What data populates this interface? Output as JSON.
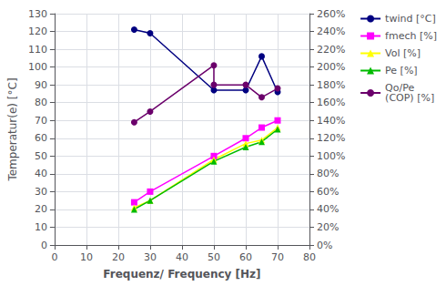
{
  "chart_data": {
    "type": "line",
    "xlabel": "Frequenz/ Frequency [Hz]",
    "ylabel": "Temperatur(e) [°C]",
    "xlim": [
      0,
      80
    ],
    "xticks": [
      0,
      10,
      20,
      30,
      40,
      50,
      60,
      70,
      80
    ],
    "ylim": [
      0,
      130
    ],
    "yticks": [
      0,
      10,
      20,
      30,
      40,
      50,
      60,
      70,
      80,
      90,
      100,
      110,
      120,
      130
    ],
    "y2lim": [
      0,
      2.6
    ],
    "y2ticks": [
      {
        "value": 0.0,
        "label": "0%"
      },
      {
        "value": 0.2,
        "label": "20%"
      },
      {
        "value": 0.4,
        "label": "40%"
      },
      {
        "value": 0.6,
        "label": "60%"
      },
      {
        "value": 0.8,
        "label": "80%"
      },
      {
        "value": 1.0,
        "label": "100%"
      },
      {
        "value": 1.2,
        "label": "120%"
      },
      {
        "value": 1.4,
        "label": "140%"
      },
      {
        "value": 1.6,
        "label": "160%"
      },
      {
        "value": 1.8,
        "label": "180%"
      },
      {
        "value": 2.0,
        "label": "200%"
      },
      {
        "value": 2.2,
        "label": "220%"
      },
      {
        "value": 2.4,
        "label": "240%"
      },
      {
        "value": 2.6,
        "label": "260%"
      }
    ],
    "grid": true,
    "legend": "upper right",
    "series": [
      {
        "name": "twind [°C]",
        "color": "#000080",
        "marker": "circle",
        "x": [
          25,
          30,
          50,
          60,
          65,
          70
        ],
        "values": [
          121,
          119,
          87,
          87,
          106,
          86
        ]
      },
      {
        "name": "fmech [%]",
        "color": "#FF00FF",
        "marker": "square",
        "x": [
          25,
          30,
          50,
          60,
          65,
          70
        ],
        "values": [
          24,
          30,
          50,
          60,
          66,
          70
        ]
      },
      {
        "name": "Vol [%]",
        "color": "#FFFF00",
        "marker": "triangle",
        "x": [
          25,
          30,
          50,
          60,
          65,
          70
        ],
        "values": [
          21,
          25,
          48,
          57,
          59,
          66
        ]
      },
      {
        "name": "Pe [%]",
        "color": "#00BB00",
        "marker": "triangle",
        "x": [
          25,
          30,
          50,
          60,
          65,
          70
        ],
        "values": [
          20,
          25,
          47,
          55,
          58,
          65
        ]
      },
      {
        "name": "Qo/Pe\n(COP) [%]",
        "color": "#6B006B",
        "marker": "circle",
        "x": [
          25,
          30,
          50,
          50,
          60,
          65,
          70
        ],
        "values": [
          69,
          75,
          101,
          90,
          90,
          83,
          88
        ]
      }
    ]
  }
}
